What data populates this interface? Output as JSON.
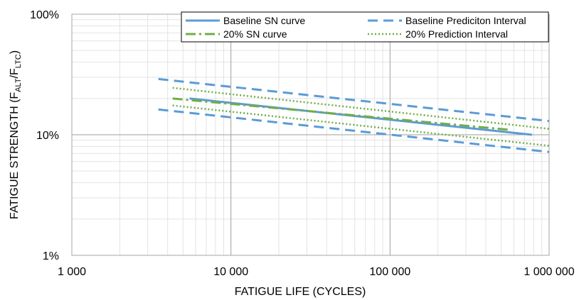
{
  "chart_data": {
    "type": "line",
    "title": "",
    "xlabel": "FATIGUE LIFE (CYCLES)",
    "ylabel_parts": {
      "main": "FATIGUE STRENGTH (F",
      "sub1": "ALT",
      "mid": "/F",
      "sub2": "LTC",
      "end": ")"
    },
    "x_scale": "log",
    "y_scale": "log",
    "xlim": [
      1000,
      1000000
    ],
    "ylim": [
      1,
      100
    ],
    "x_ticks": [
      {
        "value": 1000,
        "label": "1 000"
      },
      {
        "value": 10000,
        "label": "10 000"
      },
      {
        "value": 100000,
        "label": "100 000"
      },
      {
        "value": 1000000,
        "label": "1 000 000"
      }
    ],
    "y_ticks": [
      {
        "value": 1,
        "label": "1%"
      },
      {
        "value": 10,
        "label": "10%"
      },
      {
        "value": 100,
        "label": "100%"
      }
    ],
    "grid": "major and minor",
    "legend_position": "top-right",
    "series": [
      {
        "name": "Baseline SN curve",
        "style": "solid",
        "color": "#5b9bd5",
        "x": [
          5500,
          780000
        ],
        "y": [
          20,
          10
        ]
      },
      {
        "name": "Baseline Prediciton Interval",
        "style": "dashed",
        "color": "#5b9bd5",
        "x": [
          3500,
          1000000
        ],
        "y": [
          29,
          13
        ]
      },
      {
        "name": "Baseline Prediciton Interval",
        "style": "dashed",
        "color": "#5b9bd5",
        "x": [
          3500,
          1000000
        ],
        "y": [
          16.2,
          7.2
        ]
      },
      {
        "name": "20% SN curve",
        "style": "dashdot",
        "color": "#70ad47",
        "x": [
          4300,
          560000
        ],
        "y": [
          20,
          11
        ]
      },
      {
        "name": "20% Prediction Interval",
        "style": "dotted",
        "color": "#70ad47",
        "x": [
          4300,
          1000000
        ],
        "y": [
          24.5,
          11.2
        ]
      },
      {
        "name": "20% Prediction Interval",
        "style": "dotted",
        "color": "#70ad47",
        "x": [
          4300,
          1000000
        ],
        "y": [
          17.5,
          8.1
        ]
      }
    ],
    "legend": [
      {
        "label": "Baseline SN curve",
        "style": "solid",
        "color": "#5b9bd5"
      },
      {
        "label": "Baseline Prediciton Interval",
        "style": "dashed",
        "color": "#5b9bd5"
      },
      {
        "label": "20% SN curve",
        "style": "dashdot",
        "color": "#70ad47"
      },
      {
        "label": "20% Prediction Interval",
        "style": "dotted",
        "color": "#70ad47"
      }
    ]
  }
}
